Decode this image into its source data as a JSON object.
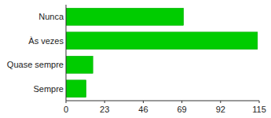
{
  "chart_data": {
    "type": "bar",
    "orientation": "horizontal",
    "categories": [
      "Nunca",
      "Às vezes",
      "Quase sempre",
      "Sempre"
    ],
    "values": [
      70,
      114,
      16,
      12
    ],
    "color": "#00cc00",
    "xlim": [
      0,
      115
    ],
    "xticks": [
      0,
      23,
      46,
      69,
      92,
      115
    ],
    "grid": false
  }
}
